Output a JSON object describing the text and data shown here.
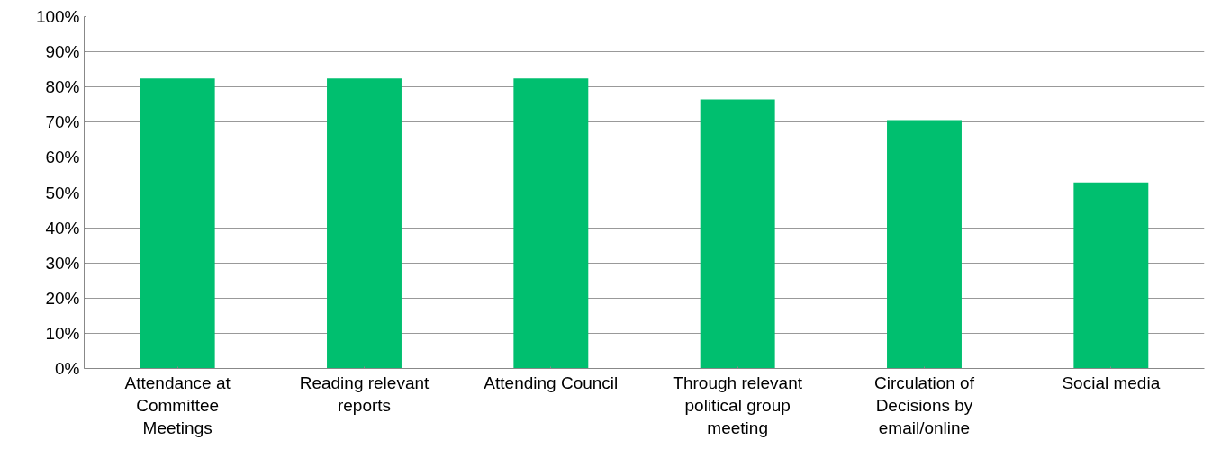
{
  "chart_data": {
    "type": "bar",
    "categories": [
      "Attendance at Committee Meetings",
      "Reading relevant reports",
      "Attending Council",
      "Through relevant political group meeting",
      "Circulation of Decisions by email/online",
      "Social media"
    ],
    "values": [
      82.4,
      82.4,
      82.4,
      76.5,
      70.6,
      52.9
    ],
    "color": "#00bf6f",
    "ylim": [
      0,
      100
    ],
    "yticks": [
      {
        "value": 0,
        "label": "0%"
      },
      {
        "value": 10,
        "label": "10%"
      },
      {
        "value": 20,
        "label": "20%"
      },
      {
        "value": 30,
        "label": "30%"
      },
      {
        "value": 40,
        "label": "40%"
      },
      {
        "value": 50,
        "label": "50%"
      },
      {
        "value": 60,
        "label": "60%"
      },
      {
        "value": 70,
        "label": "70%"
      },
      {
        "value": 80,
        "label": "80%"
      },
      {
        "value": 90,
        "label": "90%"
      },
      {
        "value": 100,
        "label": "100%"
      }
    ],
    "grid": "y"
  }
}
